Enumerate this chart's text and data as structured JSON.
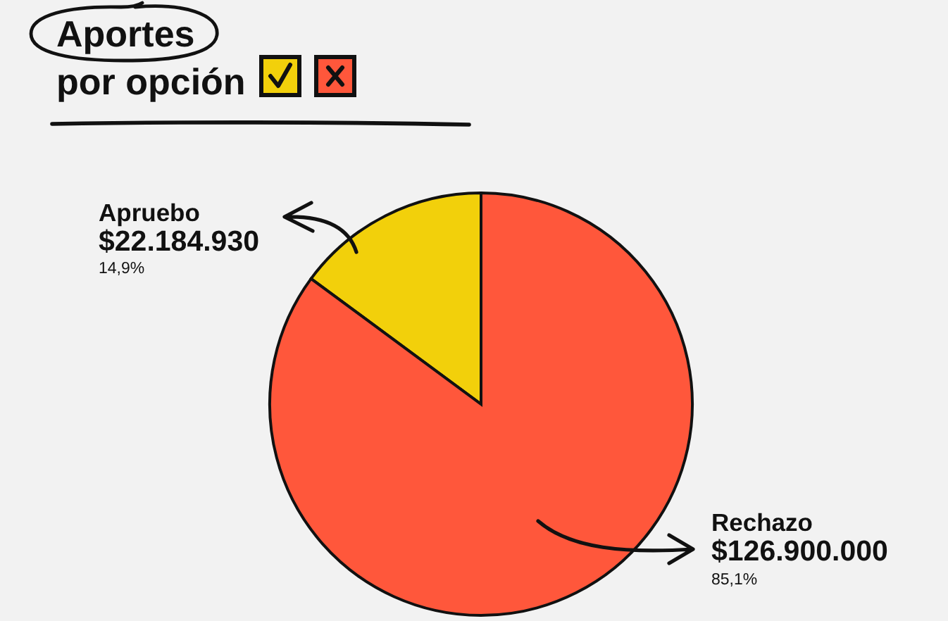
{
  "chart_data": {
    "type": "pie",
    "title": "Aportes por opción",
    "categories": [
      "Apruebo",
      "Rechazo"
    ],
    "values": [
      22184930,
      126900000
    ],
    "colors": [
      "#f2d00b",
      "#ff573b"
    ],
    "value_labels": [
      "$22.184.930",
      "$126.900.000"
    ],
    "annotations": [
      {
        "text": "14,9%",
        "x": "Apruebo"
      },
      {
        "text": "85,1%",
        "x": "Rechazo"
      }
    ]
  }
}
